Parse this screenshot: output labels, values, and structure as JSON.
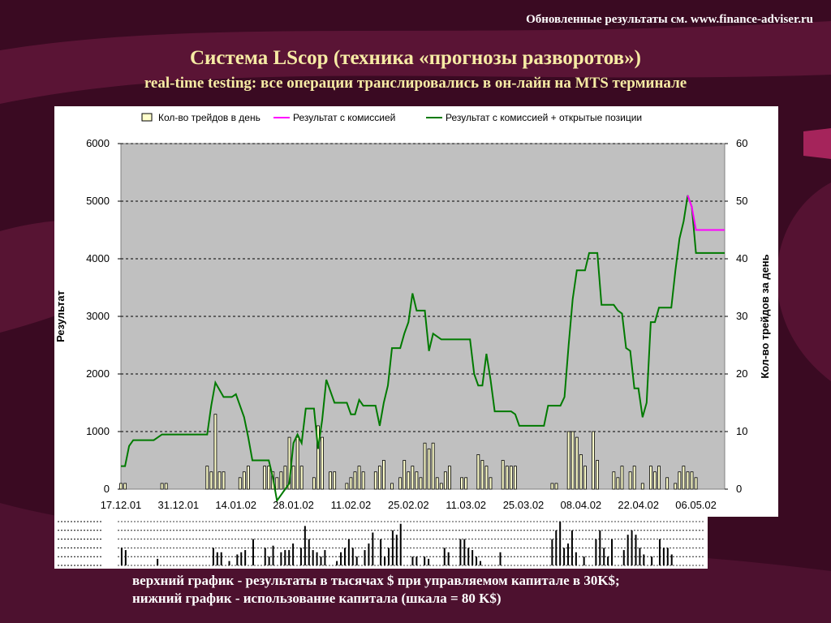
{
  "header": {
    "note": "Обновленные результаты  см. www.finance-adviser.ru",
    "title": "Система LScop (техника «прогнозы разворотов»)",
    "subtitle": "real-time testing: все операции транслировались в он-лайн на MTS терминале"
  },
  "captions": {
    "line1": "верхний график - результаты в тысячах $ при управляемом капитале в 30K$;",
    "line2": "нижний график - использование капитала (шкала = 80 K$)"
  },
  "colors": {
    "background": "#3a0a22",
    "accent_stripes": "#7a1a48",
    "title": "#f6eba4",
    "plot_area": "#c0c0c0",
    "bars": "#000000",
    "bar_fill": "#ffffcc",
    "series_commission": "#ff00ff",
    "series_open": "#007a00"
  },
  "chart_data": [
    {
      "type": "line",
      "title": "",
      "ylabel": "Результат",
      "y2label": "Кол-во трейдов за день",
      "ylim": [
        0,
        6000
      ],
      "y2lim": [
        0,
        60
      ],
      "yticks": [
        "0",
        "1000",
        "2000",
        "3000",
        "4000",
        "5000",
        "6000"
      ],
      "y2ticks": [
        "0",
        "10",
        "20",
        "30",
        "40",
        "50",
        "60"
      ],
      "grid": true,
      "legend_position": "top",
      "x_tick_labels": [
        "17.12.01",
        "31.12.01",
        "14.01.02",
        "28.01.02",
        "11.02.02",
        "25.02.02",
        "11.03.02",
        "25.03.02",
        "08.04.02",
        "22.04.02",
        "06.05.02"
      ],
      "x_day_range": [
        0,
        147
      ],
      "series": [
        {
          "name": "Кол-во трейдов в день",
          "kind": "bar",
          "axis": "right",
          "points": [
            [
              0,
              1
            ],
            [
              1,
              1
            ],
            [
              10,
              1
            ],
            [
              11,
              1
            ],
            [
              21,
              4
            ],
            [
              22,
              3
            ],
            [
              23,
              13
            ],
            [
              24,
              3
            ],
            [
              25,
              3
            ],
            [
              29,
              2
            ],
            [
              30,
              3
            ],
            [
              31,
              4
            ],
            [
              35,
              4
            ],
            [
              36,
              4
            ],
            [
              37,
              3
            ],
            [
              38,
              2
            ],
            [
              39,
              3
            ],
            [
              40,
              4
            ],
            [
              41,
              9
            ],
            [
              42,
              4
            ],
            [
              43,
              9
            ],
            [
              44,
              4
            ],
            [
              47,
              2
            ],
            [
              48,
              11
            ],
            [
              49,
              9
            ],
            [
              51,
              3
            ],
            [
              52,
              3
            ],
            [
              55,
              1
            ],
            [
              56,
              2
            ],
            [
              57,
              3
            ],
            [
              58,
              4
            ],
            [
              59,
              3
            ],
            [
              62,
              3
            ],
            [
              63,
              4
            ],
            [
              64,
              5
            ],
            [
              66,
              1
            ],
            [
              68,
              2
            ],
            [
              69,
              5
            ],
            [
              70,
              3
            ],
            [
              71,
              4
            ],
            [
              72,
              3
            ],
            [
              73,
              2
            ],
            [
              74,
              8
            ],
            [
              75,
              7
            ],
            [
              76,
              8
            ],
            [
              77,
              2
            ],
            [
              78,
              1
            ],
            [
              79,
              3
            ],
            [
              80,
              4
            ],
            [
              83,
              2
            ],
            [
              84,
              2
            ],
            [
              87,
              6
            ],
            [
              88,
              5
            ],
            [
              89,
              4
            ],
            [
              90,
              2
            ],
            [
              93,
              5
            ],
            [
              94,
              4
            ],
            [
              95,
              4
            ],
            [
              96,
              4
            ],
            [
              105,
              1
            ],
            [
              106,
              1
            ],
            [
              109,
              10
            ],
            [
              110,
              10
            ],
            [
              111,
              9
            ],
            [
              112,
              6
            ],
            [
              113,
              4
            ],
            [
              115,
              10
            ],
            [
              116,
              5
            ],
            [
              120,
              3
            ],
            [
              121,
              2
            ],
            [
              122,
              4
            ],
            [
              124,
              3
            ],
            [
              125,
              4
            ],
            [
              127,
              1
            ],
            [
              129,
              4
            ],
            [
              130,
              3
            ],
            [
              131,
              4
            ],
            [
              133,
              2
            ],
            [
              135,
              1
            ],
            [
              136,
              3
            ],
            [
              137,
              4
            ],
            [
              138,
              3
            ],
            [
              139,
              3
            ],
            [
              140,
              2
            ]
          ]
        },
        {
          "name": "Результат с комиссией",
          "kind": "line",
          "axis": "left",
          "points": [
            [
              138,
              5100
            ],
            [
              139,
              4900
            ],
            [
              140,
              4500
            ],
            [
              147,
              4500
            ]
          ]
        },
        {
          "name": "Результат с комиссией + открытые позиции",
          "kind": "line",
          "axis": "left",
          "points": [
            [
              0,
              400
            ],
            [
              1,
              400
            ],
            [
              2,
              750
            ],
            [
              3,
              850
            ],
            [
              8,
              850
            ],
            [
              9,
              900
            ],
            [
              10,
              950
            ],
            [
              21,
              950
            ],
            [
              22,
              1450
            ],
            [
              23,
              1850
            ],
            [
              25,
              1600
            ],
            [
              27,
              1600
            ],
            [
              28,
              1650
            ],
            [
              30,
              1250
            ],
            [
              31,
              900
            ],
            [
              32,
              500
            ],
            [
              36,
              500
            ],
            [
              37,
              200
            ],
            [
              38,
              -200
            ],
            [
              40,
              0
            ],
            [
              41,
              100
            ],
            [
              42,
              800
            ],
            [
              43,
              950
            ],
            [
              44,
              800
            ],
            [
              45,
              1400
            ],
            [
              47,
              1400
            ],
            [
              48,
              700
            ],
            [
              49,
              1200
            ],
            [
              50,
              1900
            ],
            [
              52,
              1500
            ],
            [
              55,
              1500
            ],
            [
              56,
              1300
            ],
            [
              57,
              1300
            ],
            [
              58,
              1550
            ],
            [
              59,
              1450
            ],
            [
              62,
              1450
            ],
            [
              63,
              1100
            ],
            [
              64,
              1500
            ],
            [
              65,
              1800
            ],
            [
              66,
              2450
            ],
            [
              68,
              2450
            ],
            [
              69,
              2700
            ],
            [
              70,
              2900
            ],
            [
              71,
              3400
            ],
            [
              72,
              3100
            ],
            [
              74,
              3100
            ],
            [
              75,
              2400
            ],
            [
              76,
              2700
            ],
            [
              78,
              2600
            ],
            [
              85,
              2600
            ],
            [
              86,
              2000
            ],
            [
              87,
              1800
            ],
            [
              88,
              1800
            ],
            [
              89,
              2350
            ],
            [
              90,
              1900
            ],
            [
              91,
              1350
            ],
            [
              95,
              1350
            ],
            [
              96,
              1300
            ],
            [
              97,
              1100
            ],
            [
              103,
              1100
            ],
            [
              104,
              1450
            ],
            [
              107,
              1450
            ],
            [
              108,
              1600
            ],
            [
              109,
              2500
            ],
            [
              110,
              3300
            ],
            [
              111,
              3800
            ],
            [
              113,
              3800
            ],
            [
              114,
              4100
            ],
            [
              116,
              4100
            ],
            [
              117,
              3200
            ],
            [
              120,
              3200
            ],
            [
              121,
              3100
            ],
            [
              122,
              3050
            ],
            [
              123,
              2450
            ],
            [
              124,
              2400
            ],
            [
              125,
              1750
            ],
            [
              126,
              1750
            ],
            [
              127,
              1250
            ],
            [
              128,
              1500
            ],
            [
              129,
              2900
            ],
            [
              130,
              2900
            ],
            [
              131,
              3150
            ],
            [
              134,
              3150
            ],
            [
              135,
              3800
            ],
            [
              136,
              4350
            ],
            [
              137,
              4650
            ],
            [
              138,
              5100
            ],
            [
              139,
              4900
            ],
            [
              140,
              4100
            ],
            [
              147,
              4100
            ]
          ]
        }
      ]
    },
    {
      "type": "bar",
      "title": "",
      "ylabel": "",
      "grid": true,
      "x_day_range": [
        0,
        147
      ],
      "series": [
        {
          "name": "",
          "points": [
            [
              1,
              40
            ],
            [
              2,
              35
            ],
            [
              10,
              15
            ],
            [
              24,
              40
            ],
            [
              25,
              30
            ],
            [
              26,
              30
            ],
            [
              28,
              10
            ],
            [
              30,
              25
            ],
            [
              31,
              30
            ],
            [
              32,
              35
            ],
            [
              34,
              60
            ],
            [
              37,
              40
            ],
            [
              38,
              20
            ],
            [
              39,
              45
            ],
            [
              41,
              30
            ],
            [
              42,
              35
            ],
            [
              43,
              35
            ],
            [
              44,
              50
            ],
            [
              46,
              40
            ],
            [
              47,
              90
            ],
            [
              48,
              60
            ],
            [
              49,
              35
            ],
            [
              50,
              30
            ],
            [
              51,
              20
            ],
            [
              52,
              35
            ],
            [
              55,
              10
            ],
            [
              56,
              30
            ],
            [
              57,
              40
            ],
            [
              58,
              60
            ],
            [
              59,
              40
            ],
            [
              60,
              20
            ],
            [
              62,
              35
            ],
            [
              63,
              50
            ],
            [
              64,
              75
            ],
            [
              66,
              60
            ],
            [
              67,
              20
            ],
            [
              68,
              40
            ],
            [
              69,
              80
            ],
            [
              70,
              70
            ],
            [
              71,
              95
            ],
            [
              74,
              20
            ],
            [
              75,
              20
            ],
            [
              77,
              20
            ],
            [
              78,
              15
            ],
            [
              82,
              40
            ],
            [
              83,
              30
            ],
            [
              86,
              60
            ],
            [
              87,
              60
            ],
            [
              88,
              40
            ],
            [
              89,
              35
            ],
            [
              90,
              20
            ],
            [
              91,
              10
            ],
            [
              96,
              30
            ],
            [
              109,
              60
            ],
            [
              110,
              80
            ],
            [
              111,
              100
            ],
            [
              112,
              40
            ],
            [
              113,
              50
            ],
            [
              114,
              80
            ],
            [
              115,
              30
            ],
            [
              117,
              20
            ],
            [
              120,
              60
            ],
            [
              121,
              80
            ],
            [
              122,
              40
            ],
            [
              123,
              20
            ],
            [
              124,
              60
            ],
            [
              127,
              35
            ],
            [
              128,
              70
            ],
            [
              129,
              80
            ],
            [
              130,
              70
            ],
            [
              131,
              40
            ],
            [
              132,
              25
            ],
            [
              134,
              20
            ],
            [
              136,
              60
            ],
            [
              137,
              40
            ],
            [
              138,
              40
            ],
            [
              139,
              25
            ]
          ]
        }
      ]
    }
  ]
}
